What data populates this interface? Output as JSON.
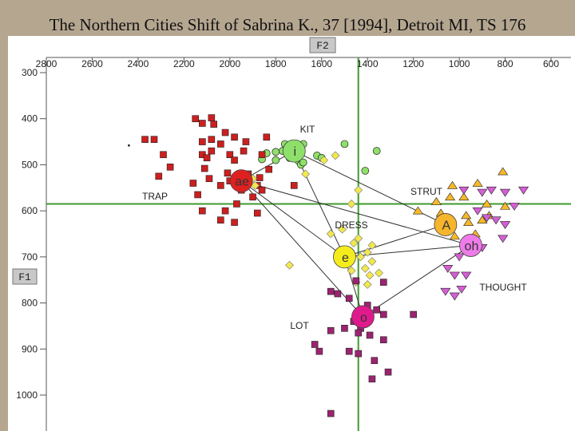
{
  "slide": {
    "title": "The Northern Cities Shift of Sabrina K., 37 [1994], Detroit MI, TS 176"
  },
  "chart_data": {
    "type": "scatter",
    "x_axis_label": "F2",
    "y_axis_label": "F1",
    "x_axis_reversed": true,
    "y_axis_reversed": true,
    "xlim": [
      2900,
      600
    ],
    "ylim": [
      290,
      1060
    ],
    "x_ticks": [
      2800,
      2600,
      2400,
      2200,
      2000,
      1800,
      1600,
      1400,
      1200,
      1000,
      800,
      600
    ],
    "y_ticks": [
      300,
      400,
      500,
      600,
      700,
      800,
      900,
      1000
    ],
    "reference_lines": {
      "f2": 1440,
      "f1": 585
    },
    "connections": [
      [
        "ae",
        "i"
      ],
      [
        "i",
        "ah"
      ],
      [
        "ae",
        "e"
      ],
      [
        "ae",
        "oh"
      ],
      [
        "e",
        "ah"
      ],
      [
        "e",
        "oh"
      ],
      [
        "o",
        "oh"
      ],
      [
        "o",
        "e"
      ],
      [
        "o",
        "ae"
      ],
      [
        "i",
        "e"
      ]
    ],
    "series": [
      {
        "key": "i",
        "label": "KIT",
        "symbol": "i",
        "marker": "circle",
        "color": "#8fe06a",
        "mean_color": "#8fe06a",
        "mean": [
          1720,
          470
        ],
        "points": [
          [
            1760,
            455
          ],
          [
            1680,
            455
          ],
          [
            1840,
            475
          ],
          [
            1800,
            472
          ],
          [
            1770,
            470
          ],
          [
            1860,
            488
          ],
          [
            1800,
            490
          ],
          [
            1740,
            485
          ],
          [
            1720,
            478
          ],
          [
            1700,
            492
          ],
          [
            1690,
            500
          ],
          [
            1620,
            480
          ],
          [
            1500,
            455
          ],
          [
            1360,
            470
          ],
          [
            1410,
            513
          ],
          [
            1600,
            485
          ],
          [
            1680,
            495
          ]
        ]
      },
      {
        "key": "ae",
        "label": "TRAP",
        "symbol": "ae",
        "marker": "square",
        "color": "#cc1f1f",
        "mean_color": "#e02020",
        "mean": [
          1950,
          535
        ],
        "points": [
          [
            2150,
            400
          ],
          [
            2120,
            410
          ],
          [
            2080,
            398
          ],
          [
            2070,
            412
          ],
          [
            2020,
            430
          ],
          [
            1980,
            440
          ],
          [
            2370,
            445
          ],
          [
            2330,
            445
          ],
          [
            2120,
            450
          ],
          [
            2080,
            445
          ],
          [
            2040,
            455
          ],
          [
            1930,
            450
          ],
          [
            1840,
            440
          ],
          [
            2080,
            470
          ],
          [
            2120,
            478
          ],
          [
            2000,
            478
          ],
          [
            1940,
            470
          ],
          [
            1860,
            478
          ],
          [
            2290,
            478
          ],
          [
            2100,
            485
          ],
          [
            1980,
            490
          ],
          [
            2260,
            505
          ],
          [
            2110,
            508
          ],
          [
            2010,
            518
          ],
          [
            1920,
            520
          ],
          [
            2310,
            525
          ],
          [
            2090,
            530
          ],
          [
            2000,
            535
          ],
          [
            1870,
            528
          ],
          [
            1880,
            545
          ],
          [
            1950,
            555
          ],
          [
            2040,
            545
          ],
          [
            1900,
            570
          ],
          [
            1970,
            585
          ],
          [
            2020,
            600
          ],
          [
            1860,
            555
          ],
          [
            1720,
            545
          ],
          [
            2140,
            565
          ],
          [
            2120,
            600
          ],
          [
            2040,
            620
          ],
          [
            1980,
            625
          ],
          [
            1880,
            605
          ],
          [
            2160,
            540
          ],
          [
            1830,
            510
          ]
        ]
      },
      {
        "key": "e",
        "label": "DRESS",
        "symbol": "e",
        "marker": "diamond",
        "color": "#f1e84e",
        "mean_color": "#f4ec1c",
        "mean": [
          1500,
          700
        ],
        "points": [
          [
            1590,
            490
          ],
          [
            1540,
            480
          ],
          [
            1900,
            530
          ],
          [
            1890,
            545
          ],
          [
            1670,
            520
          ],
          [
            1440,
            555
          ],
          [
            1470,
            585
          ],
          [
            1510,
            640
          ],
          [
            1560,
            650
          ],
          [
            1440,
            660
          ],
          [
            1460,
            670
          ],
          [
            1380,
            675
          ],
          [
            1400,
            690
          ],
          [
            1430,
            700
          ],
          [
            1380,
            710
          ],
          [
            1410,
            725
          ],
          [
            1350,
            735
          ],
          [
            1390,
            740
          ],
          [
            1450,
            755
          ],
          [
            1740,
            718
          ],
          [
            1500,
            715
          ],
          [
            1470,
            730
          ],
          [
            1400,
            760
          ]
        ]
      },
      {
        "key": "ah",
        "label": "STRUT",
        "symbol": "A",
        "marker": "triangle-up",
        "color": "#f7b92a",
        "mean_color": "#f6b52c",
        "mean": [
          1060,
          630
        ],
        "points": [
          [
            1030,
            545
          ],
          [
            980,
            570
          ],
          [
            1040,
            570
          ],
          [
            1100,
            580
          ],
          [
            1180,
            600
          ],
          [
            1080,
            605
          ],
          [
            970,
            610
          ],
          [
            900,
            620
          ],
          [
            960,
            625
          ],
          [
            930,
            650
          ],
          [
            810,
            515
          ],
          [
            920,
            540
          ],
          [
            880,
            585
          ],
          [
            800,
            590
          ],
          [
            870,
            610
          ],
          [
            1020,
            655
          ]
        ]
      },
      {
        "key": "oh",
        "label": "THOUGHT",
        "symbol": "oh",
        "marker": "triangle-down",
        "color": "#d55fd5",
        "mean_color": "#ee7be8",
        "mean": [
          950,
          675
        ],
        "points": [
          [
            980,
            555
          ],
          [
            900,
            560
          ],
          [
            860,
            555
          ],
          [
            800,
            560
          ],
          [
            720,
            555
          ],
          [
            760,
            590
          ],
          [
            920,
            600
          ],
          [
            880,
            615
          ],
          [
            840,
            620
          ],
          [
            800,
            630
          ],
          [
            810,
            660
          ],
          [
            900,
            680
          ],
          [
            960,
            690
          ],
          [
            1000,
            700
          ],
          [
            1050,
            725
          ],
          [
            1020,
            740
          ],
          [
            970,
            740
          ],
          [
            990,
            770
          ],
          [
            1020,
            785
          ],
          [
            1060,
            775
          ]
        ]
      },
      {
        "key": "o",
        "label": "LOT",
        "symbol": "o",
        "marker": "square",
        "color": "#9b2470",
        "mean_color": "#e01a8c",
        "mean": [
          1420,
          830
        ],
        "points": [
          [
            1330,
            755
          ],
          [
            1450,
            752
          ],
          [
            1530,
            780
          ],
          [
            1560,
            775
          ],
          [
            1480,
            790
          ],
          [
            1400,
            805
          ],
          [
            1360,
            815
          ],
          [
            1330,
            825
          ],
          [
            1200,
            825
          ],
          [
            1460,
            840
          ],
          [
            1430,
            855
          ],
          [
            1500,
            855
          ],
          [
            1560,
            860
          ],
          [
            1440,
            865
          ],
          [
            1390,
            870
          ],
          [
            1330,
            880
          ],
          [
            1630,
            890
          ],
          [
            1610,
            905
          ],
          [
            1480,
            905
          ],
          [
            1440,
            910
          ],
          [
            1370,
            925
          ],
          [
            1310,
            950
          ],
          [
            1380,
            965
          ],
          [
            1560,
            1040
          ]
        ]
      }
    ],
    "annotations": {
      "outlier": [
        2440,
        458
      ]
    }
  }
}
